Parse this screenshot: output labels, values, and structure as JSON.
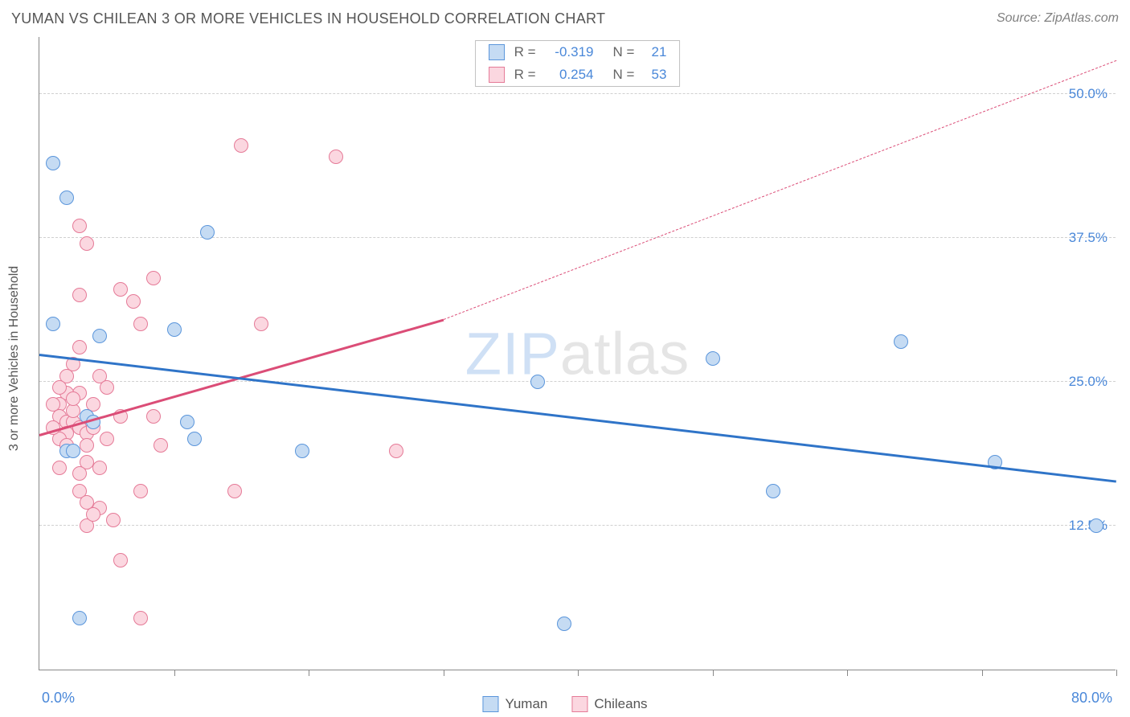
{
  "header": {
    "title": "YUMAN VS CHILEAN 3 OR MORE VEHICLES IN HOUSEHOLD CORRELATION CHART",
    "source": "Source: ZipAtlas.com"
  },
  "chart": {
    "type": "scatter",
    "ylabel": "3 or more Vehicles in Household",
    "watermark_a": "ZIP",
    "watermark_b": "atlas",
    "xlim": [
      0,
      80
    ],
    "ylim": [
      0,
      55
    ],
    "x_axis_min_label": "0.0%",
    "x_axis_max_label": "80.0%",
    "xtick_positions": [
      10,
      20,
      30,
      40,
      50,
      60,
      70,
      80
    ],
    "yticks": [
      {
        "v": 12.5,
        "label": "12.5%"
      },
      {
        "v": 25.0,
        "label": "25.0%"
      },
      {
        "v": 37.5,
        "label": "37.5%"
      },
      {
        "v": 50.0,
        "label": "50.0%"
      }
    ],
    "grid_color": "#d0d0d0",
    "marker_radius": 9,
    "marker_stroke": 1.2,
    "series": {
      "yuman": {
        "label": "Yuman",
        "fill": "#c5dbf3",
        "stroke": "#5a95db",
        "line_color": "#2f74c8",
        "R": "-0.319",
        "N": "21",
        "trend": {
          "x1": 0,
          "y1": 27.5,
          "x2": 80,
          "y2": 16.5,
          "width": 3,
          "dash": "none"
        },
        "points": [
          [
            1.0,
            44.0
          ],
          [
            2.0,
            41.0
          ],
          [
            12.5,
            38.0
          ],
          [
            1.0,
            30.0
          ],
          [
            4.5,
            29.0
          ],
          [
            10.0,
            29.5
          ],
          [
            3.5,
            22.0
          ],
          [
            4.0,
            21.5
          ],
          [
            11.0,
            21.5
          ],
          [
            11.5,
            20.0
          ],
          [
            2.0,
            19.0
          ],
          [
            2.5,
            19.0
          ],
          [
            19.5,
            19.0
          ],
          [
            37.0,
            25.0
          ],
          [
            50.0,
            27.0
          ],
          [
            54.5,
            15.5
          ],
          [
            64.0,
            28.5
          ],
          [
            71.0,
            18.0
          ],
          [
            78.5,
            12.5
          ],
          [
            3.0,
            4.5
          ],
          [
            39.0,
            4.0
          ]
        ]
      },
      "chileans": {
        "label": "Chileans",
        "fill": "#fbd7e0",
        "stroke": "#e57a97",
        "line_color": "#db4d77",
        "R": "0.254",
        "N": "53",
        "trend_solid": {
          "x1": 0,
          "y1": 20.5,
          "x2": 30,
          "y2": 30.5,
          "width": 3
        },
        "trend_dash": {
          "x1": 30,
          "y1": 30.5,
          "x2": 80,
          "y2": 53.0,
          "width": 1.5
        },
        "points": [
          [
            15.0,
            45.5
          ],
          [
            22.0,
            44.5
          ],
          [
            3.0,
            38.5
          ],
          [
            3.5,
            37.0
          ],
          [
            8.5,
            34.0
          ],
          [
            6.0,
            33.0
          ],
          [
            7.0,
            32.0
          ],
          [
            3.0,
            32.5
          ],
          [
            7.5,
            30.0
          ],
          [
            16.5,
            30.0
          ],
          [
            3.0,
            28.0
          ],
          [
            2.5,
            26.5
          ],
          [
            4.5,
            25.5
          ],
          [
            5.0,
            24.5
          ],
          [
            3.0,
            24.0
          ],
          [
            2.0,
            24.0
          ],
          [
            1.5,
            23.0
          ],
          [
            1.0,
            23.0
          ],
          [
            4.0,
            23.0
          ],
          [
            6.0,
            22.0
          ],
          [
            8.5,
            22.0
          ],
          [
            1.5,
            22.0
          ],
          [
            2.0,
            21.5
          ],
          [
            2.5,
            21.5
          ],
          [
            3.0,
            21.0
          ],
          [
            3.5,
            20.5
          ],
          [
            2.0,
            20.5
          ],
          [
            1.5,
            20.0
          ],
          [
            3.5,
            19.5
          ],
          [
            9.0,
            19.5
          ],
          [
            26.5,
            19.0
          ],
          [
            3.5,
            18.0
          ],
          [
            4.5,
            17.5
          ],
          [
            1.5,
            17.5
          ],
          [
            3.0,
            15.5
          ],
          [
            7.5,
            15.5
          ],
          [
            14.5,
            15.5
          ],
          [
            3.5,
            14.5
          ],
          [
            4.5,
            14.0
          ],
          [
            5.5,
            13.0
          ],
          [
            3.5,
            12.5
          ],
          [
            6.0,
            9.5
          ],
          [
            7.5,
            4.5
          ],
          [
            2.0,
            25.5
          ],
          [
            2.5,
            22.5
          ],
          [
            4.0,
            21.0
          ],
          [
            1.0,
            21.0
          ],
          [
            2.0,
            19.5
          ],
          [
            3.0,
            17.0
          ],
          [
            5.0,
            20.0
          ],
          [
            2.5,
            23.5
          ],
          [
            1.5,
            24.5
          ],
          [
            4.0,
            13.5
          ]
        ]
      }
    }
  }
}
